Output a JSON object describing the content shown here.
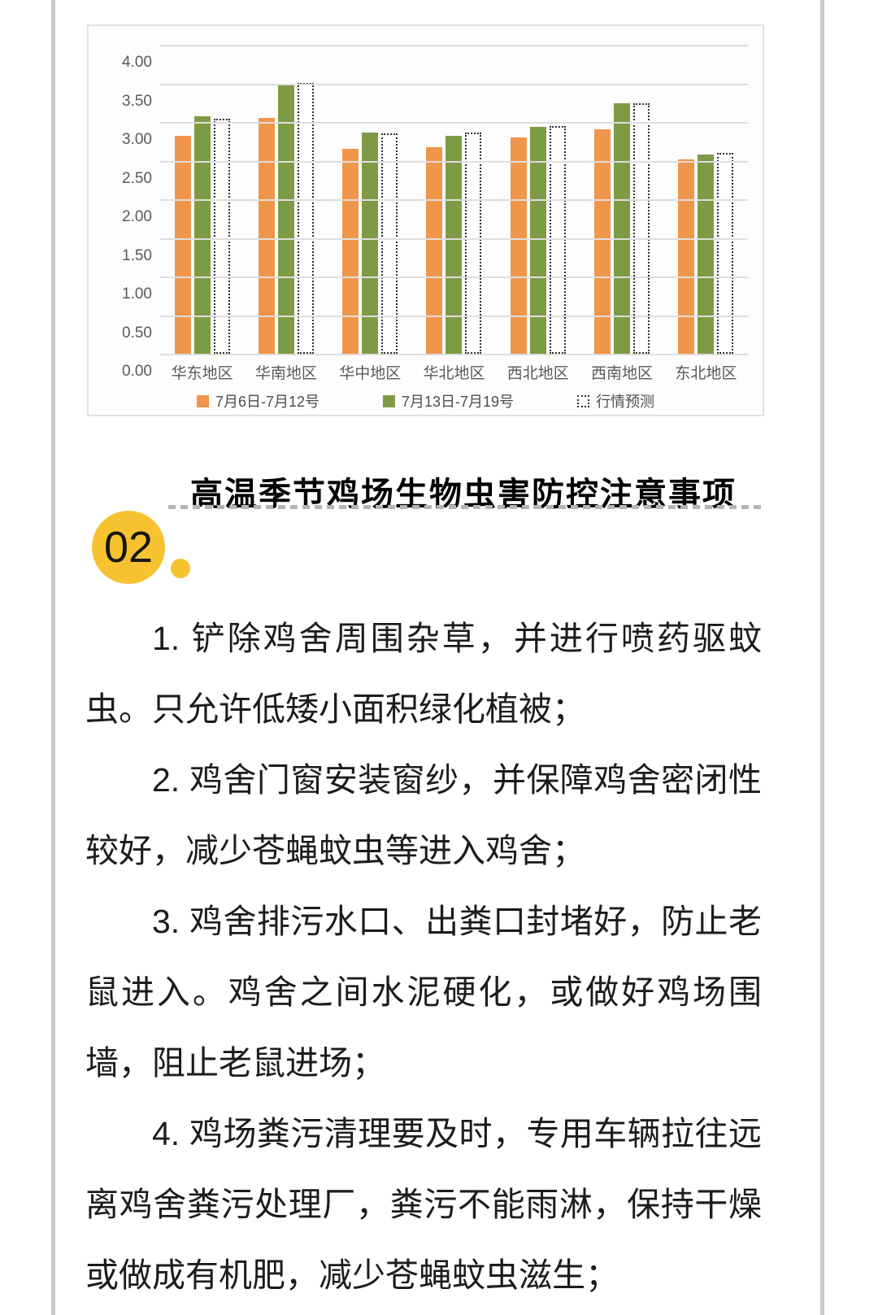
{
  "page": {
    "background": "#ffffff",
    "border_color": "#c9c9c9"
  },
  "chart_data": {
    "type": "bar",
    "title": "",
    "xlabel": "",
    "ylabel": "",
    "categories": [
      "华东地区",
      "华南地区",
      "华中地区",
      "华北地区",
      "西北地区",
      "西南地区",
      "东北地区"
    ],
    "series": [
      {
        "name": "7月6日-7月12号",
        "color": "#f0964a",
        "style": "solid",
        "values": [
          2.82,
          3.05,
          2.65,
          2.67,
          2.8,
          2.9,
          2.52
        ]
      },
      {
        "name": "7月13日-7月19号",
        "color": "#7d9b45",
        "style": "solid",
        "values": [
          3.07,
          3.48,
          2.86,
          2.82,
          2.94,
          3.24,
          2.58
        ]
      },
      {
        "name": "行情预测",
        "color": "#ffffff",
        "style": "dotted",
        "values": [
          3.04,
          3.5,
          2.85,
          2.86,
          2.95,
          3.24,
          2.6
        ]
      }
    ],
    "ylim": [
      0,
      4
    ],
    "ytick_step": 0.5,
    "yticks": [
      "4.00",
      "3.50",
      "3.00",
      "2.50",
      "2.00",
      "1.50",
      "1.00",
      "0.50",
      "0.00"
    ],
    "grid": true,
    "legend_position": "bottom"
  },
  "section": {
    "title": "高温季节鸡场生物虫害防控注意事项",
    "badge": "02",
    "badge_color": "#f7c230"
  },
  "article": {
    "paragraphs": [
      "1. 铲除鸡舍周围杂草，并进行喷药驱蚊虫。只允许低矮小面积绿化植被；",
      "2. 鸡舍门窗安装窗纱，并保障鸡舍密闭性较好，减少苍蝇蚊虫等进入鸡舍；",
      "3. 鸡舍排污水口、出粪口封堵好，防止老鼠进入。鸡舍之间水泥硬化，或做好鸡场围墙，阻止老鼠进场；",
      "4. 鸡场粪污清理要及时，专用车辆拉往远离鸡舍粪污处理厂，粪污不能雨淋，保持干燥或做成有机肥，减少苍蝇蚊虫滋生；"
    ]
  }
}
